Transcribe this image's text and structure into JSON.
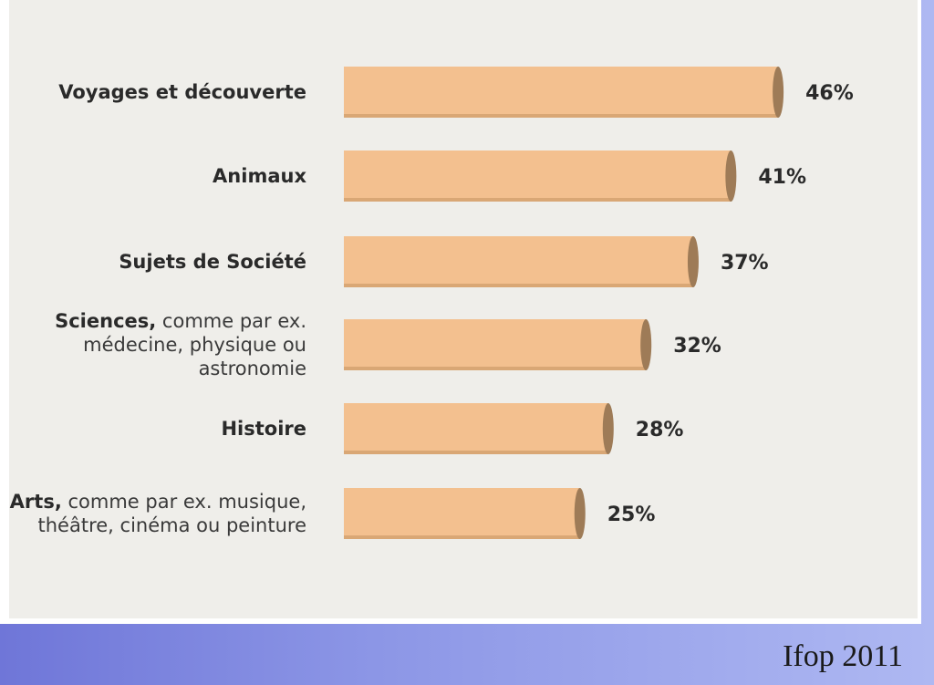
{
  "chart_data": {
    "type": "bar",
    "orientation": "horizontal",
    "categories": [
      {
        "bold": "Voyages et découverte",
        "rest": ""
      },
      {
        "bold": "Animaux",
        "rest": ""
      },
      {
        "bold": "Sujets de Société",
        "rest": ""
      },
      {
        "bold": "Sciences,",
        "rest": " comme par ex. médecine, physique ou astronomie"
      },
      {
        "bold": "Histoire",
        "rest": ""
      },
      {
        "bold": "Arts,",
        "rest": " comme par ex. musique, théâtre, cinéma ou peinture"
      }
    ],
    "values": [
      46,
      41,
      37,
      32,
      28,
      25
    ],
    "value_labels": [
      "46%",
      "41%",
      "37%",
      "32%",
      "28%",
      "25%"
    ],
    "unit": "%",
    "grid": false,
    "legend": "none"
  },
  "colors": {
    "bar_fill": "#f3c08f",
    "bar_end": "#9e7b57",
    "panel_bg": "#efeeea",
    "text": "#2a2a2a"
  },
  "footer": {
    "source": "Ifop 2011"
  }
}
